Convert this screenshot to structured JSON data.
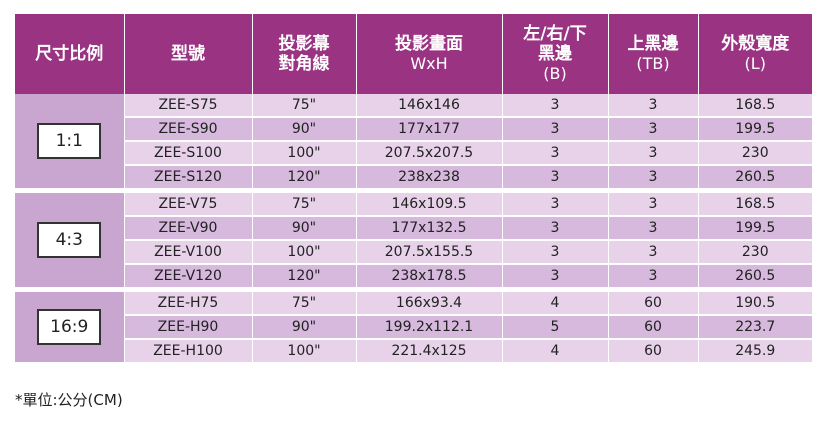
{
  "headers": [
    {
      "line1": "尺寸比例",
      "line2": ""
    },
    {
      "line1": "型號",
      "line2": ""
    },
    {
      "line1": "投影幕",
      "line2": "對角線"
    },
    {
      "line1": "投影畫面",
      "line2": "WxH"
    },
    {
      "line1": "左/右/下",
      "line1b": "黑邊",
      "line2": "(B)"
    },
    {
      "line1": "上黑邊",
      "line2": "(TB)"
    },
    {
      "line1": "外殼寬度",
      "line2": "(L)"
    }
  ],
  "groups": [
    {
      "ratio": "1:1",
      "rows": [
        {
          "model": "ZEE-S75",
          "diagonal": "75\"",
          "size": "146x146",
          "border": "3",
          "top": "3",
          "width": "168.5"
        },
        {
          "model": "ZEE-S90",
          "diagonal": "90\"",
          "size": "177x177",
          "border": "3",
          "top": "3",
          "width": "199.5"
        },
        {
          "model": "ZEE-S100",
          "diagonal": "100\"",
          "size": "207.5x207.5",
          "border": "3",
          "top": "3",
          "width": "230"
        },
        {
          "model": "ZEE-S120",
          "diagonal": "120\"",
          "size": "238x238",
          "border": "3",
          "top": "3",
          "width": "260.5"
        }
      ]
    },
    {
      "ratio": "4:3",
      "rows": [
        {
          "model": "ZEE-V75",
          "diagonal": "75\"",
          "size": "146x109.5",
          "border": "3",
          "top": "3",
          "width": "168.5"
        },
        {
          "model": "ZEE-V90",
          "diagonal": "90\"",
          "size": "177x132.5",
          "border": "3",
          "top": "3",
          "width": "199.5"
        },
        {
          "model": "ZEE-V100",
          "diagonal": "100\"",
          "size": "207.5x155.5",
          "border": "3",
          "top": "3",
          "width": "230"
        },
        {
          "model": "ZEE-V120",
          "diagonal": "120\"",
          "size": "238x178.5",
          "border": "3",
          "top": "3",
          "width": "260.5"
        }
      ]
    },
    {
      "ratio": "16:9",
      "rows": [
        {
          "model": "ZEE-H75",
          "diagonal": "75\"",
          "size": "166x93.4",
          "border": "4",
          "top": "60",
          "width": "190.5"
        },
        {
          "model": "ZEE-H90",
          "diagonal": "90\"",
          "size": "199.2x112.1",
          "border": "5",
          "top": "60",
          "width": "223.7"
        },
        {
          "model": "ZEE-H100",
          "diagonal": "100\"",
          "size": "221.4x125",
          "border": "4",
          "top": "60",
          "width": "245.9"
        }
      ]
    }
  ],
  "note": "*單位:公分(CM)",
  "colors": {
    "header": "#9a3382",
    "row_light": "#e7d2ea",
    "row_dark": "#d6b9dd",
    "ratio_cell": "#c9a6d0"
  }
}
